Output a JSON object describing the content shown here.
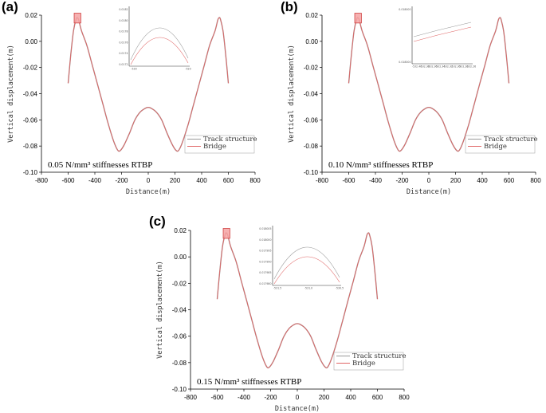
{
  "chart_data": [
    {
      "panel": "(a)",
      "type": "line",
      "caption": "0.05 N/mm³ stiffnesses RTBP",
      "xlabel": "Distance(m)",
      "ylabel": "Vertical displacement(m)",
      "xlim": [
        -800,
        800
      ],
      "ylim": [
        -0.1,
        0.02
      ],
      "xticks": [
        -800,
        -600,
        -400,
        -200,
        0,
        200,
        400,
        600,
        800
      ],
      "xtick_labels": [
        "-800",
        "-600",
        "-400",
        "-200",
        "0",
        "200",
        "400",
        "600",
        "800"
      ],
      "yticks": [
        0.02,
        0.0,
        -0.02,
        -0.04,
        -0.06,
        -0.08,
        -0.1
      ],
      "ytick_labels": [
        "0.02",
        "0.00",
        "-0.02",
        "-0.04",
        "-0.06",
        "-0.08",
        "-0.10"
      ],
      "legend": [
        "Track structure",
        "Bridge"
      ],
      "series": [
        {
          "name": "Track structure",
          "color": "#999999",
          "x": [
            -600,
            -580,
            -560,
            -540,
            -530,
            -520,
            -500,
            -460,
            -420,
            -380,
            -340,
            -300,
            -260,
            -230,
            -210,
            -180,
            -140,
            -100,
            -60,
            -20,
            0,
            20,
            60,
            100,
            140,
            180,
            210,
            230,
            260,
            300,
            340,
            380,
            420,
            460,
            500,
            520,
            530,
            540,
            560,
            580,
            600
          ],
          "y": [
            -0.032,
            -0.01,
            0.008,
            0.017,
            0.018,
            0.016,
            0.008,
            -0.003,
            -0.018,
            -0.033,
            -0.048,
            -0.063,
            -0.076,
            -0.083,
            -0.0835,
            -0.079,
            -0.07,
            -0.06,
            -0.054,
            -0.051,
            -0.0505,
            -0.051,
            -0.054,
            -0.06,
            -0.07,
            -0.079,
            -0.0835,
            -0.083,
            -0.076,
            -0.063,
            -0.048,
            -0.033,
            -0.018,
            -0.003,
            0.008,
            0.016,
            0.018,
            0.017,
            0.008,
            -0.01,
            -0.032
          ]
        },
        {
          "name": "Bridge",
          "color": "#e06666",
          "x": [
            -600,
            -580,
            -560,
            -540,
            -530,
            -520,
            -500,
            -460,
            -420,
            -380,
            -340,
            -300,
            -260,
            -230,
            -210,
            -180,
            -140,
            -100,
            -60,
            -20,
            0,
            20,
            60,
            100,
            140,
            180,
            210,
            230,
            260,
            300,
            340,
            380,
            420,
            460,
            500,
            520,
            530,
            540,
            560,
            580,
            600
          ],
          "y": [
            -0.032,
            -0.01,
            0.008,
            0.017,
            0.018,
            0.016,
            0.008,
            -0.003,
            -0.018,
            -0.033,
            -0.048,
            -0.063,
            -0.076,
            -0.083,
            -0.0835,
            -0.079,
            -0.07,
            -0.06,
            -0.054,
            -0.051,
            -0.0505,
            -0.051,
            -0.054,
            -0.06,
            -0.07,
            -0.079,
            -0.0835,
            -0.083,
            -0.076,
            -0.063,
            -0.048,
            -0.033,
            -0.018,
            -0.003,
            0.008,
            0.016,
            0.018,
            0.017,
            0.008,
            -0.01,
            -0.032
          ]
        }
      ],
      "inset": {
        "ytick_labels": [
          "0.0182",
          "0.0180",
          "0.0178",
          "0.0176",
          "0.0174",
          "0.0172"
        ],
        "xtick_labels": [
          "-530",
          "-520"
        ]
      }
    },
    {
      "panel": "(b)",
      "type": "line",
      "caption": "0.10 N/mm³ stiffnesses RTBP",
      "xlabel": "Distance(m)",
      "ylabel": "Vertical displacement(m)",
      "xlim": [
        -800,
        800
      ],
      "ylim": [
        -0.1,
        0.02
      ],
      "xticks": [
        -800,
        -600,
        -400,
        -200,
        0,
        200,
        400,
        600,
        800
      ],
      "xtick_labels": [
        "-800",
        "-600",
        "-400",
        "-200",
        "0",
        "200",
        "400",
        "600",
        "800"
      ],
      "yticks": [
        0.02,
        0.0,
        -0.02,
        -0.04,
        -0.06,
        -0.08,
        -0.1
      ],
      "ytick_labels": [
        "0.02",
        "0.00",
        "-0.02",
        "-0.04",
        "-0.06",
        "-0.08",
        "-0.10"
      ],
      "legend": [
        "Track structure",
        "Bridge"
      ],
      "series": [
        {
          "name": "Track structure",
          "color": "#999999",
          "x": [
            -600,
            -580,
            -560,
            -540,
            -530,
            -520,
            -500,
            -460,
            -420,
            -380,
            -340,
            -300,
            -260,
            -230,
            -210,
            -180,
            -140,
            -100,
            -60,
            -20,
            0,
            20,
            60,
            100,
            140,
            180,
            210,
            230,
            260,
            300,
            340,
            380,
            420,
            460,
            500,
            520,
            530,
            540,
            560,
            580,
            600
          ],
          "y": [
            -0.032,
            -0.01,
            0.008,
            0.017,
            0.018,
            0.016,
            0.008,
            -0.003,
            -0.018,
            -0.033,
            -0.048,
            -0.063,
            -0.076,
            -0.083,
            -0.0835,
            -0.079,
            -0.07,
            -0.06,
            -0.054,
            -0.051,
            -0.0505,
            -0.051,
            -0.054,
            -0.06,
            -0.07,
            -0.079,
            -0.0835,
            -0.083,
            -0.076,
            -0.063,
            -0.048,
            -0.033,
            -0.018,
            -0.003,
            0.008,
            0.016,
            0.018,
            0.017,
            0.008,
            -0.01,
            -0.032
          ]
        },
        {
          "name": "Bridge",
          "color": "#e06666",
          "x": [
            -600,
            -580,
            -560,
            -540,
            -530,
            -520,
            -500,
            -460,
            -420,
            -380,
            -340,
            -300,
            -260,
            -230,
            -210,
            -180,
            -140,
            -100,
            -60,
            -20,
            0,
            20,
            60,
            100,
            140,
            180,
            210,
            230,
            260,
            300,
            340,
            380,
            420,
            460,
            500,
            520,
            530,
            540,
            560,
            580,
            600
          ],
          "y": [
            -0.032,
            -0.01,
            0.008,
            0.017,
            0.018,
            0.016,
            0.008,
            -0.003,
            -0.018,
            -0.033,
            -0.048,
            -0.063,
            -0.076,
            -0.083,
            -0.0835,
            -0.079,
            -0.07,
            -0.06,
            -0.054,
            -0.051,
            -0.0505,
            -0.051,
            -0.054,
            -0.06,
            -0.07,
            -0.079,
            -0.0835,
            -0.083,
            -0.076,
            -0.063,
            -0.048,
            -0.033,
            -0.018,
            -0.003,
            0.008,
            0.016,
            0.018,
            0.017,
            0.008,
            -0.01,
            -0.032
          ]
        }
      ],
      "inset": {
        "ytick_labels": [
          "0.018000",
          "0.018000"
        ],
        "xtick_labels": [
          "-532.40",
          "-532.38",
          "-532.36",
          "-532.34",
          "-532.32",
          "-532.30",
          "-532.28",
          "-532.26"
        ]
      }
    },
    {
      "panel": "(c)",
      "type": "line",
      "caption": "0.15 N/mm³ stiffnesses RTBP",
      "xlabel": "Distance(m)",
      "ylabel": "Vertical displacement(m)",
      "xlim": [
        -800,
        800
      ],
      "ylim": [
        -0.1,
        0.02
      ],
      "xticks": [
        -800,
        -600,
        -400,
        -200,
        0,
        200,
        400,
        600,
        800
      ],
      "xtick_labels": [
        "-800",
        "-600",
        "-400",
        "-200",
        "0",
        "200",
        "400",
        "600",
        "800"
      ],
      "yticks": [
        0.02,
        0.0,
        -0.02,
        -0.04,
        -0.06,
        -0.08,
        -0.1
      ],
      "ytick_labels": [
        "0.02",
        "0.00",
        "-0.02",
        "-0.04",
        "-0.06",
        "-0.08",
        "-0.10"
      ],
      "legend": [
        "Track structure",
        "Bridge"
      ],
      "series": [
        {
          "name": "Track structure",
          "color": "#999999",
          "x": [
            -600,
            -580,
            -560,
            -540,
            -530,
            -520,
            -500,
            -460,
            -420,
            -380,
            -340,
            -300,
            -260,
            -230,
            -210,
            -180,
            -140,
            -100,
            -60,
            -20,
            0,
            20,
            60,
            100,
            140,
            180,
            210,
            230,
            260,
            300,
            340,
            380,
            420,
            460,
            500,
            520,
            530,
            540,
            560,
            580,
            600
          ],
          "y": [
            -0.032,
            -0.01,
            0.008,
            0.017,
            0.018,
            0.016,
            0.008,
            -0.003,
            -0.018,
            -0.033,
            -0.048,
            -0.063,
            -0.076,
            -0.083,
            -0.0835,
            -0.079,
            -0.07,
            -0.06,
            -0.054,
            -0.051,
            -0.0505,
            -0.051,
            -0.054,
            -0.06,
            -0.07,
            -0.079,
            -0.0835,
            -0.083,
            -0.076,
            -0.063,
            -0.048,
            -0.033,
            -0.018,
            -0.003,
            0.008,
            0.016,
            0.018,
            0.017,
            0.008,
            -0.01,
            -0.032
          ]
        },
        {
          "name": "Bridge",
          "color": "#e06666",
          "x": [
            -600,
            -580,
            -560,
            -540,
            -530,
            -520,
            -500,
            -460,
            -420,
            -380,
            -340,
            -300,
            -260,
            -230,
            -210,
            -180,
            -140,
            -100,
            -60,
            -20,
            0,
            20,
            60,
            100,
            140,
            180,
            210,
            230,
            260,
            300,
            340,
            380,
            420,
            460,
            500,
            520,
            530,
            540,
            560,
            580,
            600
          ],
          "y": [
            -0.032,
            -0.01,
            0.008,
            0.017,
            0.018,
            0.016,
            0.008,
            -0.003,
            -0.018,
            -0.033,
            -0.048,
            -0.063,
            -0.076,
            -0.083,
            -0.0835,
            -0.079,
            -0.07,
            -0.06,
            -0.054,
            -0.051,
            -0.0505,
            -0.051,
            -0.054,
            -0.06,
            -0.07,
            -0.079,
            -0.0835,
            -0.083,
            -0.076,
            -0.063,
            -0.048,
            -0.033,
            -0.018,
            -0.003,
            0.008,
            0.016,
            0.018,
            0.017,
            0.008,
            -0.01,
            -0.032
          ]
        }
      ],
      "inset": {
        "ytick_labels": [
          "0.018005",
          "0.018000",
          "0.017995",
          "0.017990",
          "0.017985",
          "0.017980"
        ],
        "xtick_labels": [
          "-531.5",
          "-531.0",
          "-530.5"
        ]
      }
    }
  ]
}
